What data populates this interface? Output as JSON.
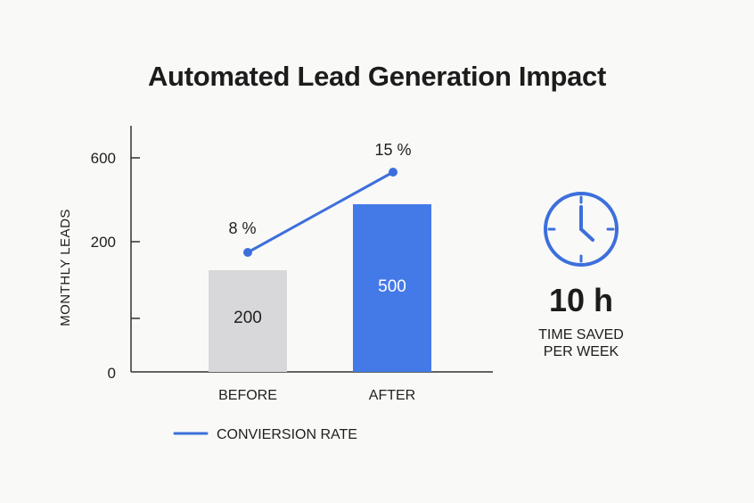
{
  "title": "Automated Lead Generation Impact",
  "chart_data": {
    "type": "bar",
    "title": "Automated Lead Generation Impact",
    "xlabel": "",
    "ylabel": "MONTHLY LEADS",
    "categories": [
      "BEFORE",
      "AFTER"
    ],
    "series": [
      {
        "name": "",
        "values": [
          200,
          500
        ],
        "value_labels": [
          "200",
          "500"
        ]
      },
      {
        "name": "CONVIERSION RATE",
        "type": "line",
        "values": [
          8,
          15
        ],
        "value_labels": [
          "8 %",
          "15 %"
        ]
      }
    ],
    "ytick_labels": [
      "600",
      "200",
      "",
      "0"
    ],
    "legend": {
      "position": "bottom-left",
      "label": "CONVIERSION RATE"
    },
    "grid": false,
    "colors": {
      "before_bar": "#d8d8da",
      "after_bar": "#4479e8",
      "line": "#3d6fdc",
      "axis": "#333333"
    }
  },
  "highlight": {
    "icon": "clock-icon",
    "value": "10 h",
    "caption_line1": "TIME SAVED",
    "caption_line2": "PER WEEK",
    "color": "#3d6fdc"
  }
}
